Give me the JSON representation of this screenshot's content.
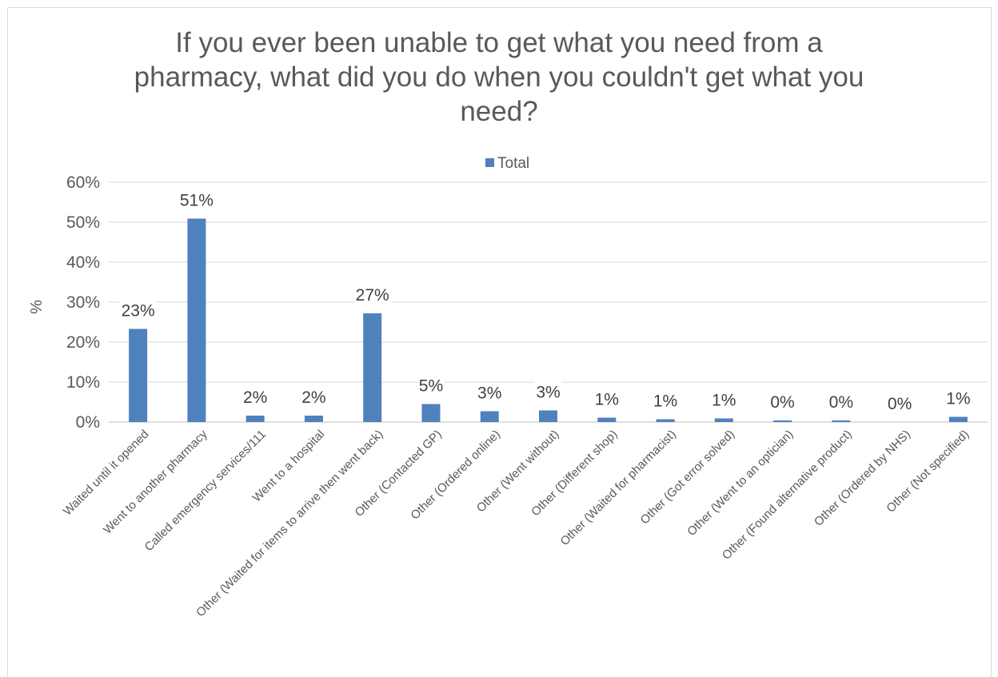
{
  "chart_data": {
    "type": "bar",
    "title_lines": [
      "If you ever been unable to get what you need from a",
      "pharmacy, what did you do when you couldn't get what you",
      "need?"
    ],
    "ylabel": "%",
    "ylim": [
      0,
      60
    ],
    "yticks": [
      "0%",
      "10%",
      "20%",
      "30%",
      "40%",
      "50%",
      "60%"
    ],
    "grid": true,
    "legend_position": "top",
    "bar_color": "#4f81bd",
    "categories": [
      "Waited until it opened",
      "Went to another pharmacy",
      "Called emergency services/111",
      "Went to a hospital",
      "Other (Waited for items to arrive then went back)",
      "Other (Contacted GP)",
      "Other (Ordered online)",
      "Other (Went without)",
      "Other (Different shop)",
      "Other (Waited for pharmacist)",
      "Other (Got error solved)",
      "Other (Went to an optician)",
      "Other (Found alternative product)",
      "Other (Ordered by NHS)",
      "Other (Not specified)"
    ],
    "series": [
      {
        "name": "Total",
        "values": [
          23.3,
          50.9,
          1.6,
          1.6,
          27.2,
          4.5,
          2.7,
          2.9,
          1.1,
          0.7,
          0.9,
          0.4,
          0.4,
          0.0,
          1.3
        ],
        "labels": [
          "23%",
          "51%",
          "2%",
          "2%",
          "27%",
          "5%",
          "3%",
          "3%",
          "1%",
          "1%",
          "1%",
          "0%",
          "0%",
          "0%",
          "1%"
        ]
      }
    ]
  }
}
